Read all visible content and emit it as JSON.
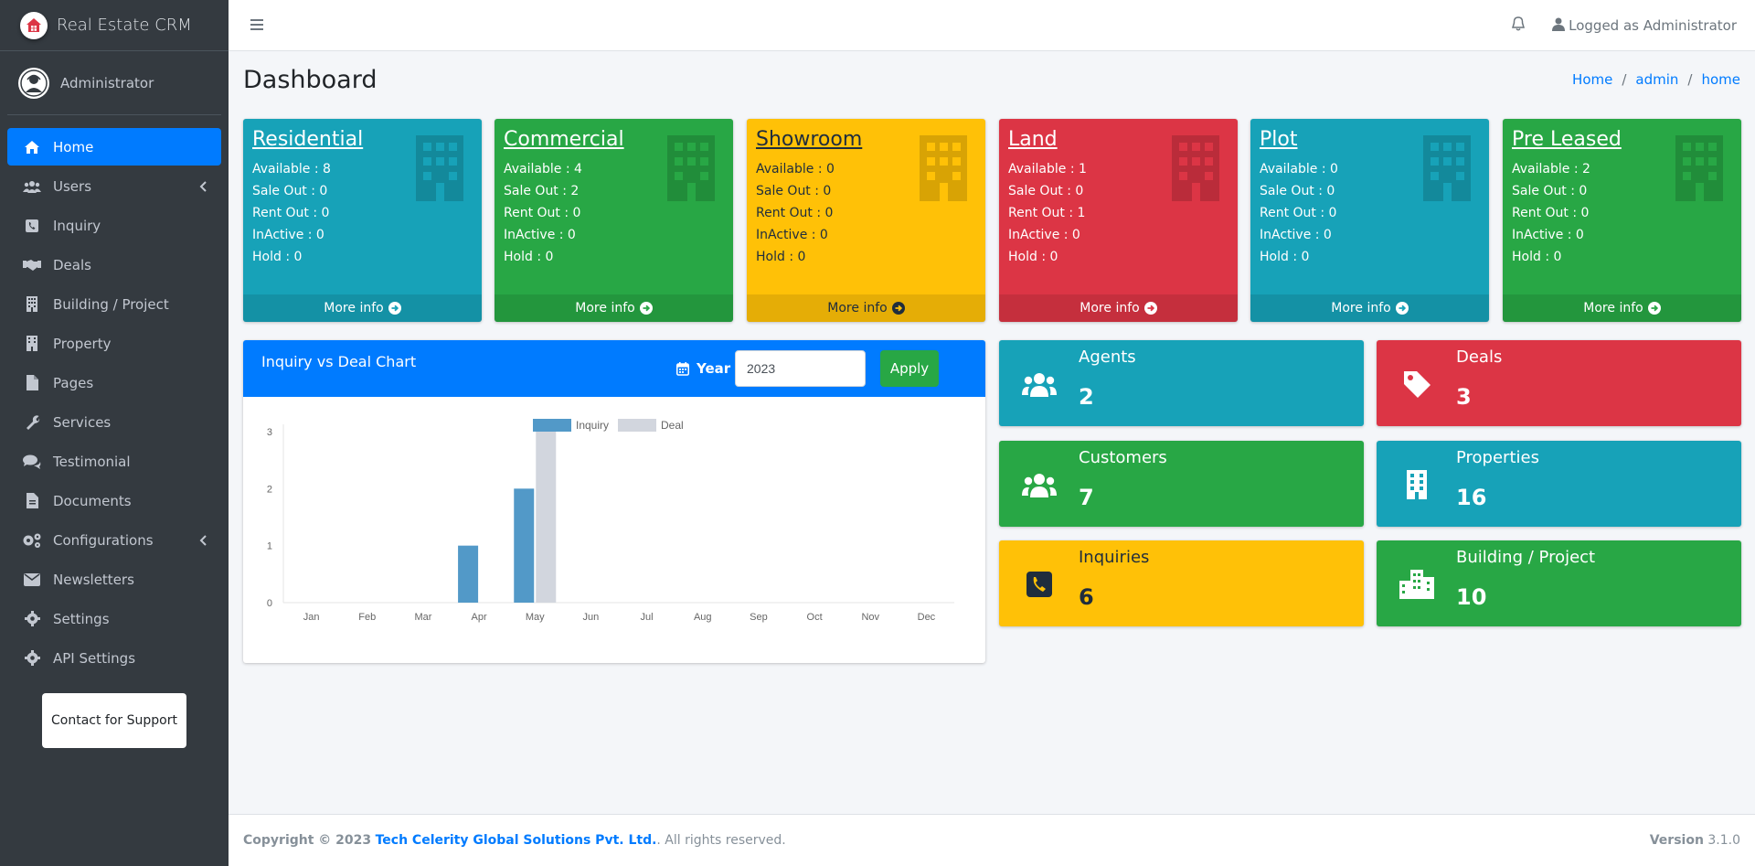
{
  "brand": {
    "title": "Real Estate CRM"
  },
  "user": {
    "name": "Administrator"
  },
  "nav": [
    {
      "label": "Home",
      "icon": "home-icon"
    },
    {
      "label": "Users",
      "icon": "users-icon"
    },
    {
      "label": "Inquiry",
      "icon": "inquiry-icon"
    },
    {
      "label": "Deals",
      "icon": "handshake-icon"
    },
    {
      "label": "Building / Project",
      "icon": "building-icon"
    },
    {
      "label": "Property",
      "icon": "building-icon"
    },
    {
      "label": "Pages",
      "icon": "file-icon"
    },
    {
      "label": "Services",
      "icon": "wrench-icon"
    },
    {
      "label": "Testimonial",
      "icon": "comments-icon"
    },
    {
      "label": "Documents",
      "icon": "document-icon"
    },
    {
      "label": "Configurations",
      "icon": "cogs-icon"
    },
    {
      "label": "Newsletters",
      "icon": "envelope-icon"
    },
    {
      "label": "Settings",
      "icon": "gear-icon"
    },
    {
      "label": "API Settings",
      "icon": "gear-icon"
    }
  ],
  "support": {
    "label": "Contact for Support"
  },
  "topbar": {
    "logged_as": "Logged as Administrator"
  },
  "page": {
    "title": "Dashboard"
  },
  "breadcrumb": {
    "home": "Home",
    "admin": "admin",
    "current": "home"
  },
  "property_boxes": [
    {
      "title": "Residential",
      "available": "Available : 8",
      "sale_out": "Sale Out : 0",
      "rent_out": "Rent Out : 0",
      "inactive": "InActive : 0",
      "hold": "Hold : 0",
      "more": "More info",
      "color": "#17a2b8"
    },
    {
      "title": "Commercial",
      "available": "Available : 4",
      "sale_out": "Sale Out : 2",
      "rent_out": "Rent Out : 0",
      "inactive": "InActive : 0",
      "hold": "Hold : 0",
      "more": "More info",
      "color": "#28a745"
    },
    {
      "title": "Showroom",
      "available": "Available : 0",
      "sale_out": "Sale Out : 0",
      "rent_out": "Rent Out : 0",
      "inactive": "InActive : 0",
      "hold": "Hold : 0",
      "more": "More info",
      "color": "#ffc107"
    },
    {
      "title": "Land",
      "available": "Available : 1",
      "sale_out": "Sale Out : 0",
      "rent_out": "Rent Out : 1",
      "inactive": "InActive : 0",
      "hold": "Hold : 0",
      "more": "More info",
      "color": "#dc3545"
    },
    {
      "title": "Plot",
      "available": "Available : 0",
      "sale_out": "Sale Out : 0",
      "rent_out": "Rent Out : 0",
      "inactive": "InActive : 0",
      "hold": "Hold : 0",
      "more": "More info",
      "color": "#17a2b8"
    },
    {
      "title": "Pre Leased",
      "available": "Available : 2",
      "sale_out": "Sale Out : 0",
      "rent_out": "Rent Out : 0",
      "inactive": "InActive : 0",
      "hold": "Hold : 0",
      "more": "More info",
      "color": "#28a745"
    }
  ],
  "chart_card": {
    "title": "Inquiry vs Deal Chart",
    "year_label": "Year",
    "year_value": "2023",
    "apply_label": "Apply"
  },
  "chart_data": {
    "type": "bar",
    "categories": [
      "Jan",
      "Feb",
      "Mar",
      "Apr",
      "May",
      "Jun",
      "Jul",
      "Aug",
      "Sep",
      "Oct",
      "Nov",
      "Dec"
    ],
    "series": [
      {
        "name": "Inquiry",
        "values": [
          0,
          0,
          0,
          1,
          2,
          0,
          0,
          0,
          0,
          0,
          0,
          0
        ],
        "color": "#5299c8"
      },
      {
        "name": "Deal",
        "values": [
          0,
          0,
          0,
          0,
          3,
          0,
          0,
          0,
          0,
          0,
          0,
          0
        ],
        "color": "#d2d6de"
      }
    ],
    "yticks": [
      "0",
      "1",
      "2",
      "3"
    ],
    "ylim": [
      0,
      3
    ],
    "legend": "top-center"
  },
  "info_boxes": [
    {
      "label": "Agents",
      "value": "2",
      "icon": "users-icon",
      "color": "#17a2b8"
    },
    {
      "label": "Deals",
      "value": "3",
      "icon": "tag-icon",
      "color": "#dc3545"
    },
    {
      "label": "Customers",
      "value": "7",
      "icon": "users-icon",
      "color": "#28a745"
    },
    {
      "label": "Properties",
      "value": "16",
      "icon": "building-icon",
      "color": "#17a2b8"
    },
    {
      "label": "Inquiries",
      "value": "6",
      "icon": "phone-icon",
      "color": "#ffc107"
    },
    {
      "label": "Building / Project",
      "value": "10",
      "icon": "city-icon",
      "color": "#28a745"
    }
  ],
  "footer": {
    "copyright": "Copyright © 2023",
    "company": "Tech Celerity Global Solutions Pvt. Ltd.",
    "rights": ". All rights reserved.",
    "version_label": "Version",
    "version_value": "3.1.0"
  }
}
